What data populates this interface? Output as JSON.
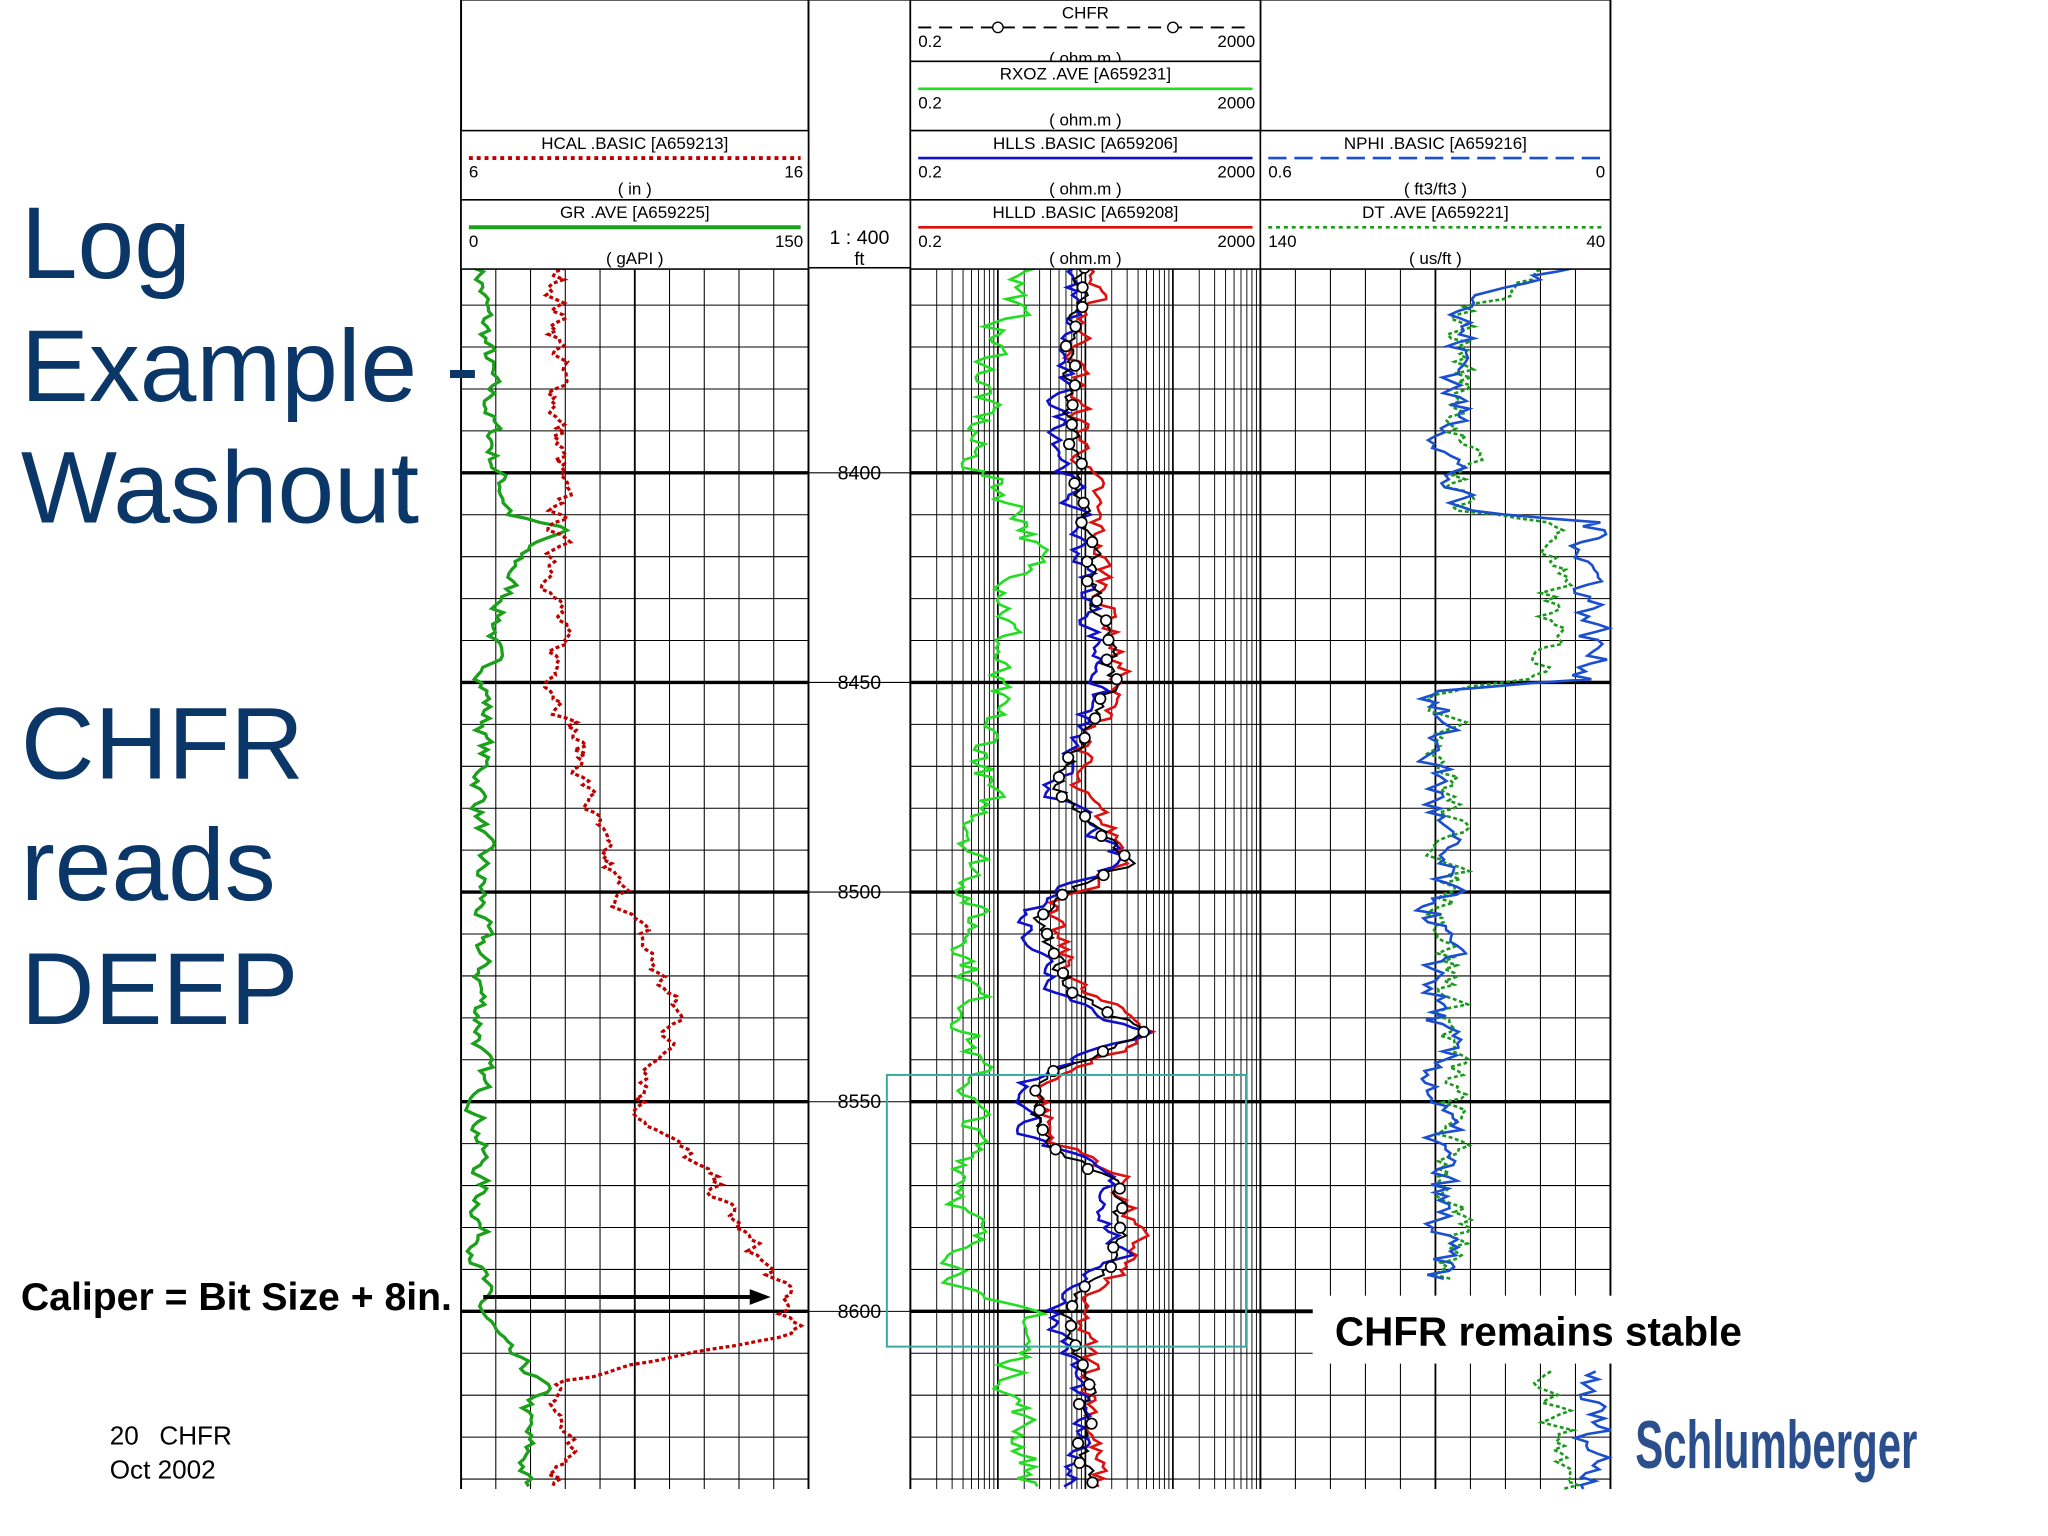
{
  "title_lines": [
    "Log",
    "Example -",
    "Washout",
    "CHFR",
    "reads",
    "DEEP"
  ],
  "caliper_note": "Caliper = Bit Size + 8in.",
  "annotation": "CHFR remains stable",
  "footer": {
    "slide_number": "20",
    "slide_topic": "CHFR",
    "date": "Oct 2002"
  },
  "logo": "Schlumberger",
  "tracks": [
    {
      "headers": [
        {
          "name": "HCAL .BASIC [A659213]",
          "left": "6",
          "right": "16",
          "unit": "( in )"
        },
        {
          "name": "GR .AVE [A659225]",
          "left": "0",
          "right": "150",
          "unit": "( gAPI )"
        }
      ]
    },
    {
      "headers": [
        {
          "name": "CHFR",
          "left": "0.2",
          "right": "2000",
          "unit": "( ohm.m )"
        },
        {
          "name": "RXOZ .AVE [A659231]",
          "left": "0.2",
          "right": "2000",
          "unit": "( ohm.m )"
        },
        {
          "name": "HLLS .BASIC [A659206]",
          "left": "0.2",
          "right": "2000",
          "unit": "( ohm.m )"
        },
        {
          "name": "HLLD .BASIC [A659208]",
          "left": "0.2",
          "right": "2000",
          "unit": "( ohm.m )"
        }
      ]
    },
    {
      "headers": [
        {
          "name": "NPHI .BASIC [A659216]",
          "left": "0.6",
          "right": "0",
          "unit": "( ft3/ft3 )"
        },
        {
          "name": "DT .AVE [A659221]",
          "left": "140",
          "right": "40",
          "unit": "( us/ft )"
        }
      ]
    }
  ],
  "depth_header": {
    "scale": "1 : 400",
    "unit": "ft"
  },
  "depth_labels": [
    "8400",
    "8450",
    "8500",
    "8550",
    "8600"
  ]
}
